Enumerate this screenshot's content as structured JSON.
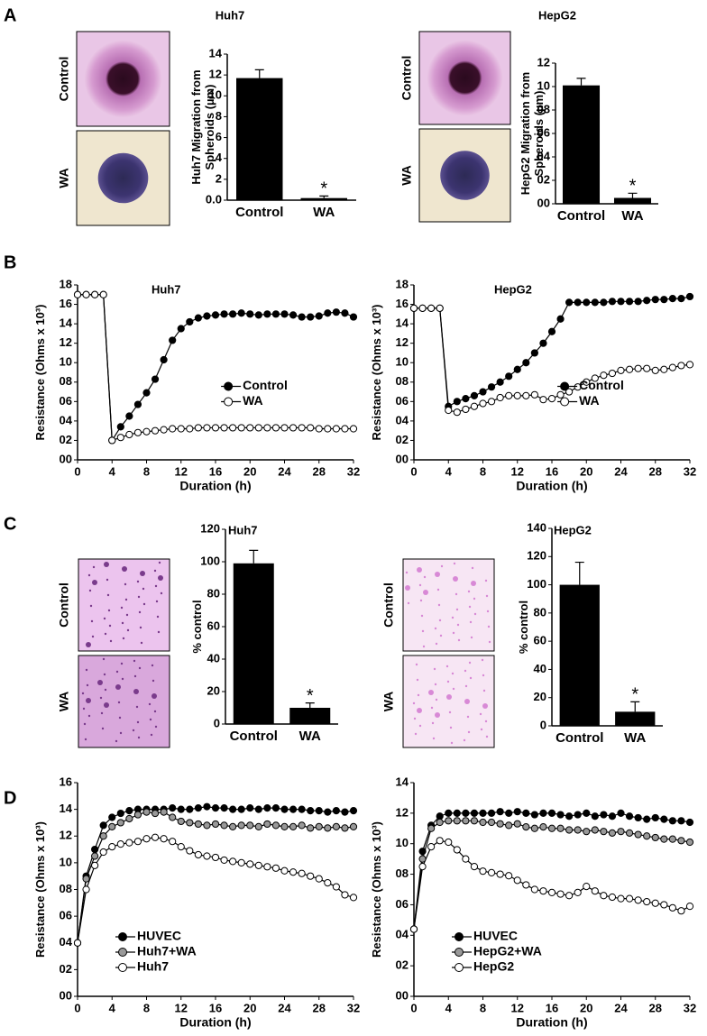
{
  "panel_labels": [
    "A",
    "B",
    "C",
    "D"
  ],
  "micrograph_labels": [
    [
      "Control",
      "WA"
    ],
    [
      "Control",
      "WA"
    ],
    [
      "Control",
      "WA"
    ],
    [
      "Control",
      "WA"
    ]
  ],
  "chart_data": [
    {
      "type": "bar",
      "title": "Huh7",
      "ylabel": "Huh7 Migration from Spheroids (µm)",
      "categories": [
        "Control",
        "WA"
      ],
      "values": [
        11.7,
        0.2
      ],
      "errors": [
        0.8,
        0.2
      ],
      "color": "#000000",
      "annotation": "*",
      "ylim": [
        0,
        14
      ],
      "yticks": [
        {
          "value": 0,
          "label": "0.0"
        },
        2,
        4,
        6,
        8,
        10,
        12,
        14
      ]
    },
    {
      "type": "bar",
      "title": "HepG2",
      "ylabel": "HepG2 Migration from Spheroids (µm)",
      "categories": [
        "Control",
        "WA"
      ],
      "values": [
        10.1,
        0.5
      ],
      "errors": [
        0.6,
        0.4
      ],
      "color": "#000000",
      "annotation": "*",
      "ylim": [
        0,
        12
      ],
      "yticks": [
        {
          "value": 0,
          "label": "00"
        },
        {
          "value": 2,
          "label": "02"
        },
        {
          "value": 4,
          "label": "04"
        },
        {
          "value": 6,
          "label": "06"
        },
        {
          "value": 8,
          "label": "08"
        },
        10,
        12
      ]
    },
    {
      "type": "line",
      "title": "Huh7",
      "ylabel": "Resistance (Ohms x 10³)",
      "xlabel": "Duration (h)",
      "legend": "center right",
      "line_color": "#000000",
      "x": [
        0,
        1,
        2,
        3,
        4,
        5,
        6,
        7,
        8,
        9,
        10,
        11,
        12,
        13,
        14,
        15,
        16,
        17,
        18,
        19,
        20,
        21,
        22,
        23,
        24,
        25,
        26,
        27,
        28,
        29,
        30,
        31,
        32
      ],
      "series": [
        {
          "name": "Control",
          "color": "#000000",
          "values": [
            17,
            17,
            17,
            17,
            2.0,
            3.4,
            4.5,
            5.7,
            6.9,
            8.3,
            10.3,
            12.3,
            13.5,
            14.2,
            14.6,
            14.8,
            14.9,
            15.0,
            15.0,
            15.1,
            15.0,
            14.9,
            15.0,
            15.0,
            15.0,
            14.9,
            14.7,
            14.7,
            14.8,
            15.1,
            15.2,
            15.1,
            14.7
          ]
        },
        {
          "name": "WA",
          "color": "#ffffff",
          "values": [
            17,
            17,
            17,
            17,
            2.0,
            2.3,
            2.6,
            2.8,
            2.9,
            3.0,
            3.1,
            3.2,
            3.2,
            3.2,
            3.3,
            3.3,
            3.3,
            3.3,
            3.3,
            3.3,
            3.3,
            3.3,
            3.3,
            3.3,
            3.3,
            3.3,
            3.3,
            3.3,
            3.2,
            3.2,
            3.2,
            3.2,
            3.2
          ]
        }
      ],
      "xlim": [
        0,
        32
      ],
      "xticks": [
        0,
        4,
        8,
        12,
        16,
        20,
        24,
        28,
        32
      ],
      "ylim": [
        0,
        18
      ],
      "yticks": [
        {
          "value": 0,
          "label": "00"
        },
        {
          "value": 2,
          "label": "02"
        },
        {
          "value": 4,
          "label": "04"
        },
        {
          "value": 6,
          "label": "06"
        },
        {
          "value": 8,
          "label": "08"
        },
        10,
        12,
        14,
        16,
        18
      ]
    },
    {
      "type": "line",
      "title": "HepG2",
      "ylabel": "Resistance (Ohms x 10³)",
      "xlabel": "Duration (h)",
      "legend": "center right",
      "line_color": "#000000",
      "x": [
        0,
        1,
        2,
        3,
        4,
        5,
        6,
        7,
        8,
        9,
        10,
        11,
        12,
        13,
        14,
        15,
        16,
        17,
        18,
        19,
        20,
        21,
        22,
        23,
        24,
        25,
        26,
        27,
        28,
        29,
        30,
        31,
        32
      ],
      "series": [
        {
          "name": "Control",
          "color": "#000000",
          "values": [
            15.6,
            15.6,
            15.6,
            15.6,
            5.5,
            6.0,
            6.3,
            6.6,
            7.0,
            7.5,
            8.0,
            8.6,
            9.3,
            10.0,
            11.0,
            12.0,
            13.2,
            14.5,
            16.2,
            16.2,
            16.2,
            16.2,
            16.2,
            16.3,
            16.3,
            16.3,
            16.3,
            16.4,
            16.5,
            16.5,
            16.6,
            16.6,
            16.8
          ]
        },
        {
          "name": "WA",
          "color": "#ffffff",
          "values": [
            15.6,
            15.6,
            15.6,
            15.6,
            5.1,
            4.9,
            5.2,
            5.5,
            5.8,
            6.0,
            6.4,
            6.6,
            6.6,
            6.6,
            6.7,
            6.2,
            6.3,
            6.7,
            7.0,
            7.5,
            8.0,
            8.4,
            8.7,
            8.9,
            9.2,
            9.3,
            9.4,
            9.4,
            9.2,
            9.3,
            9.5,
            9.7,
            9.8
          ]
        }
      ],
      "xlim": [
        0,
        32
      ],
      "xticks": [
        0,
        4,
        8,
        12,
        16,
        20,
        24,
        28,
        32
      ],
      "ylim": [
        0,
        18
      ],
      "yticks": [
        {
          "value": 0,
          "label": "00"
        },
        {
          "value": 2,
          "label": "02"
        },
        {
          "value": 4,
          "label": "04"
        },
        {
          "value": 6,
          "label": "06"
        },
        {
          "value": 8,
          "label": "08"
        },
        10,
        12,
        14,
        16,
        18
      ]
    },
    {
      "type": "bar",
      "title": "Huh7",
      "ylabel": "% control",
      "categories": [
        "Control",
        "WA"
      ],
      "values": [
        99,
        10
      ],
      "errors": [
        8,
        3
      ],
      "color": "#000000",
      "annotation": "*",
      "ylim": [
        0,
        120
      ],
      "yticks": [
        0,
        20,
        40,
        60,
        80,
        100,
        120
      ]
    },
    {
      "type": "bar",
      "title": "HepG2",
      "ylabel": "% control",
      "categories": [
        "Control",
        "WA"
      ],
      "values": [
        100,
        10
      ],
      "errors": [
        16,
        7
      ],
      "color": "#000000",
      "annotation": "*",
      "ylim": [
        0,
        140
      ],
      "yticks": [
        0,
        20,
        40,
        60,
        80,
        100,
        120,
        140
      ]
    },
    {
      "type": "line",
      "ylabel": "Resistance (Ohms x 10³)",
      "xlabel": "Duration (h)",
      "legend": "lower left",
      "line_color": "#000000",
      "x": [
        0,
        1,
        2,
        3,
        4,
        5,
        6,
        7,
        8,
        9,
        10,
        11,
        12,
        13,
        14,
        15,
        16,
        17,
        18,
        19,
        20,
        21,
        22,
        23,
        24,
        25,
        26,
        27,
        28,
        29,
        30,
        31,
        32
      ],
      "series": [
        {
          "name": "HUVEC",
          "color": "#000000",
          "values": [
            4.0,
            9.0,
            11.0,
            12.8,
            13.4,
            13.7,
            13.9,
            14.0,
            14.0,
            14.0,
            14.0,
            14.1,
            14.0,
            14.0,
            14.1,
            14.2,
            14.1,
            14.1,
            14.0,
            14.0,
            14.1,
            14.0,
            14.1,
            14.1,
            14.0,
            14.0,
            14.0,
            13.9,
            13.9,
            13.8,
            13.9,
            13.8,
            13.9
          ]
        },
        {
          "name": "Huh7+WA",
          "color": "#999999",
          "values": [
            4.0,
            8.8,
            10.5,
            12.0,
            12.7,
            13.0,
            13.3,
            13.6,
            13.8,
            13.7,
            13.8,
            13.4,
            13.1,
            13.0,
            12.9,
            12.8,
            12.9,
            12.8,
            12.7,
            12.8,
            12.8,
            12.7,
            12.9,
            12.8,
            12.7,
            12.7,
            12.8,
            12.6,
            12.7,
            12.6,
            12.7,
            12.6,
            12.7
          ]
        },
        {
          "name": "Huh7",
          "color": "#ffffff",
          "values": [
            4.0,
            8.0,
            9.8,
            10.8,
            11.2,
            11.4,
            11.5,
            11.6,
            11.8,
            11.9,
            11.8,
            11.6,
            11.2,
            10.9,
            10.6,
            10.5,
            10.4,
            10.2,
            10.1,
            10.0,
            9.9,
            9.8,
            9.7,
            9.6,
            9.4,
            9.3,
            9.2,
            9.0,
            8.8,
            8.5,
            8.2,
            7.6,
            7.4
          ]
        }
      ],
      "xlim": [
        0,
        32
      ],
      "xticks": [
        0,
        4,
        8,
        12,
        16,
        20,
        24,
        28,
        32
      ],
      "ylim": [
        0,
        16
      ],
      "yticks": [
        {
          "value": 0,
          "label": "00"
        },
        {
          "value": 2,
          "label": "02"
        },
        {
          "value": 4,
          "label": "04"
        },
        {
          "value": 6,
          "label": "06"
        },
        {
          "value": 8,
          "label": "08"
        },
        10,
        12,
        14,
        16
      ]
    },
    {
      "type": "line",
      "ylabel": "Resistance (Ohms x 10³)",
      "xlabel": "Duration (h)",
      "legend": "lower left",
      "line_color": "#000000",
      "x": [
        0,
        1,
        2,
        3,
        4,
        5,
        6,
        7,
        8,
        9,
        10,
        11,
        12,
        13,
        14,
        15,
        16,
        17,
        18,
        19,
        20,
        21,
        22,
        23,
        24,
        25,
        26,
        27,
        28,
        29,
        30,
        31,
        32
      ],
      "series": [
        {
          "name": "HUVEC",
          "color": "#000000",
          "values": [
            4.4,
            9.5,
            11.2,
            11.8,
            12.0,
            12.0,
            12.0,
            12.0,
            12.0,
            12.0,
            12.1,
            12.0,
            12.1,
            12.0,
            11.9,
            12.0,
            12.0,
            11.9,
            11.8,
            11.9,
            12.0,
            11.8,
            11.9,
            11.8,
            12.0,
            11.8,
            11.7,
            11.6,
            11.7,
            11.6,
            11.5,
            11.5,
            11.4
          ]
        },
        {
          "name": "HepG2+WA",
          "color": "#999999",
          "values": [
            4.4,
            9.0,
            11.0,
            11.4,
            11.5,
            11.5,
            11.5,
            11.5,
            11.4,
            11.4,
            11.3,
            11.2,
            11.3,
            11.1,
            11.0,
            11.1,
            11.0,
            11.0,
            10.9,
            10.9,
            10.8,
            10.9,
            10.8,
            10.7,
            10.8,
            10.7,
            10.6,
            10.5,
            10.4,
            10.3,
            10.3,
            10.2,
            10.1
          ]
        },
        {
          "name": "HepG2",
          "color": "#ffffff",
          "values": [
            4.4,
            8.5,
            9.8,
            10.2,
            10.1,
            9.6,
            9.0,
            8.5,
            8.2,
            8.1,
            8.0,
            7.9,
            7.6,
            7.3,
            7.0,
            6.9,
            6.8,
            6.7,
            6.6,
            6.8,
            7.2,
            6.9,
            6.6,
            6.5,
            6.4,
            6.4,
            6.3,
            6.2,
            6.1,
            6.0,
            5.8,
            5.6,
            5.9
          ]
        }
      ],
      "xlim": [
        0,
        32
      ],
      "xticks": [
        0,
        4,
        8,
        12,
        16,
        20,
        24,
        28,
        32
      ],
      "ylim": [
        0,
        14
      ],
      "yticks": [
        {
          "value": 0,
          "label": "00"
        },
        {
          "value": 2,
          "label": "02"
        },
        {
          "value": 4,
          "label": "04"
        },
        {
          "value": 6,
          "label": "06"
        },
        {
          "value": 8,
          "label": "08"
        },
        10,
        12,
        14
      ]
    }
  ]
}
